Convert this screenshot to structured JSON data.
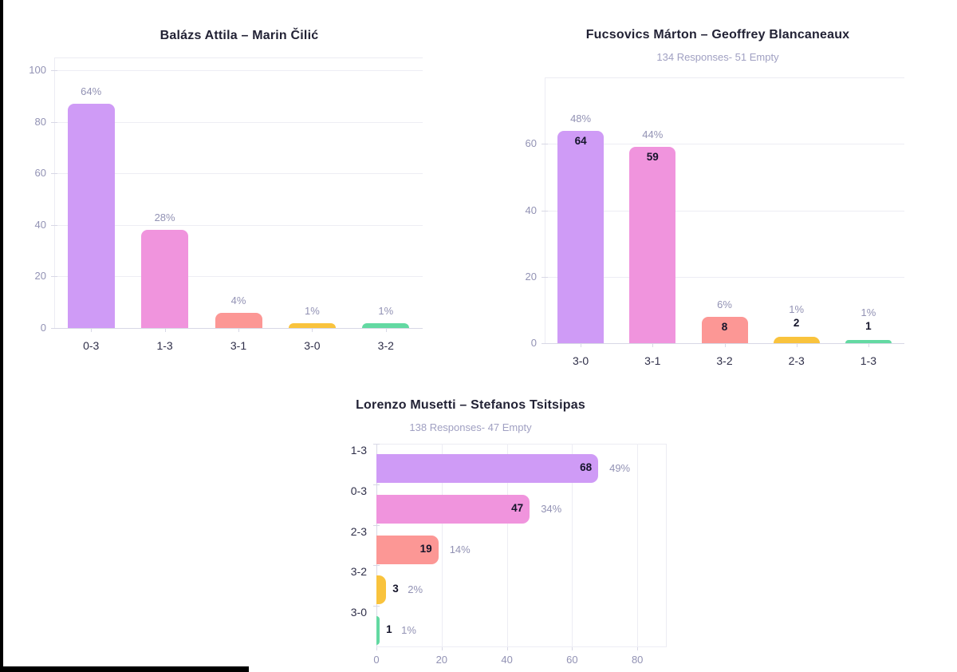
{
  "colors": {
    "purple": "#cf9bf6",
    "pink": "#f094dd",
    "salmon": "#fc9795",
    "yellow": "#f9c33d",
    "green": "#63d9a2",
    "grid": "#ededf4",
    "frame": "#ececf3",
    "axis": "#d8d8e6",
    "percent_label": "#9292b4",
    "count_label": "#14142a",
    "category_label": "#2f2f49",
    "title": "#222235",
    "subtitle": "#a0a0c2",
    "edge_bar": "#000000"
  },
  "chart_data": [
    {
      "type": "bar",
      "orientation": "vertical",
      "title": "Balázs Attila – Marin Čilić",
      "subtitle": "",
      "categories": [
        "0-3",
        "1-3",
        "3-1",
        "3-0",
        "3-2"
      ],
      "values": [
        87,
        38,
        6,
        2,
        2
      ],
      "percent_labels": [
        "64%",
        "28%",
        "4%",
        "1%",
        "1%"
      ],
      "count_labels": [],
      "bar_colors": [
        "#cf9bf6",
        "#f094dd",
        "#fc9795",
        "#f9c33d",
        "#63d9a2"
      ],
      "y_ticks": [
        0,
        20,
        40,
        60,
        80,
        100
      ],
      "ylim": [
        0,
        105
      ],
      "grid": true,
      "legend": "none"
    },
    {
      "type": "bar",
      "orientation": "vertical",
      "title": "Fucsovics Márton – Geoffrey Blancaneaux",
      "subtitle": "134 Responses- 51 Empty",
      "categories": [
        "3-0",
        "3-1",
        "3-2",
        "2-3",
        "1-3"
      ],
      "values": [
        64,
        59,
        8,
        2,
        1
      ],
      "percent_labels": [
        "48%",
        "44%",
        "6%",
        "1%",
        "1%"
      ],
      "count_labels": [
        "64",
        "59",
        "8",
        "2",
        "1"
      ],
      "bar_colors": [
        "#cf9bf6",
        "#f094dd",
        "#fc9795",
        "#f9c33d",
        "#63d9a2"
      ],
      "y_ticks": [
        0,
        20,
        40,
        60
      ],
      "ylim": [
        0,
        80
      ],
      "grid": true,
      "legend": "none"
    },
    {
      "type": "bar",
      "orientation": "horizontal",
      "title": "Lorenzo Musetti – Stefanos Tsitsipas",
      "subtitle": "138 Responses- 47 Empty",
      "categories": [
        "1-3",
        "0-3",
        "2-3",
        "3-2",
        "3-0"
      ],
      "values": [
        68,
        47,
        19,
        3,
        1
      ],
      "percent_labels": [
        "49%",
        "34%",
        "14%",
        "2%",
        "1%"
      ],
      "count_labels": [
        "68",
        "47",
        "19",
        "3",
        "1"
      ],
      "bar_colors": [
        "#cf9bf6",
        "#f094dd",
        "#fc9795",
        "#f9c33d",
        "#63d9a2"
      ],
      "x_ticks": [
        0,
        20,
        40,
        60,
        80
      ],
      "xlim": [
        0,
        89
      ],
      "grid": true,
      "legend": "none"
    }
  ]
}
